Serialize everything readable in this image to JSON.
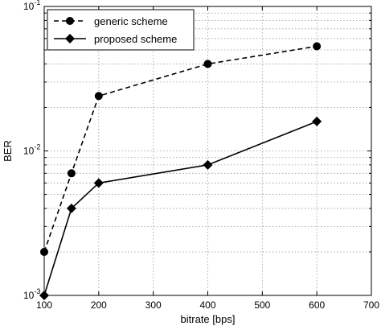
{
  "chart_data": {
    "type": "line",
    "title": "",
    "xlabel": "bitrate [bps]",
    "ylabel": "BER",
    "xlim": [
      100,
      700
    ],
    "ylim": [
      0.001,
      0.1
    ],
    "yscale": "log",
    "grid": true,
    "legend_position": "top-left",
    "x_ticks": [
      "100",
      "200",
      "300",
      "400",
      "500",
      "600",
      "700"
    ],
    "y_ticks": [
      {
        "base": "10",
        "exp": "-3"
      },
      {
        "base": "10",
        "exp": "-2"
      },
      {
        "base": "10",
        "exp": "-1"
      }
    ],
    "series": [
      {
        "name": "generic scheme",
        "line_style": "dashed",
        "marker": "circle",
        "color": "#000000",
        "x": [
          100,
          150,
          200,
          400,
          600
        ],
        "y": [
          0.002,
          0.007,
          0.024,
          0.04,
          0.053
        ]
      },
      {
        "name": "proposed scheme",
        "line_style": "solid",
        "marker": "diamond",
        "color": "#000000",
        "x": [
          100,
          150,
          200,
          400,
          600
        ],
        "y": [
          0.001,
          0.004,
          0.006,
          0.008,
          0.016
        ]
      }
    ]
  }
}
